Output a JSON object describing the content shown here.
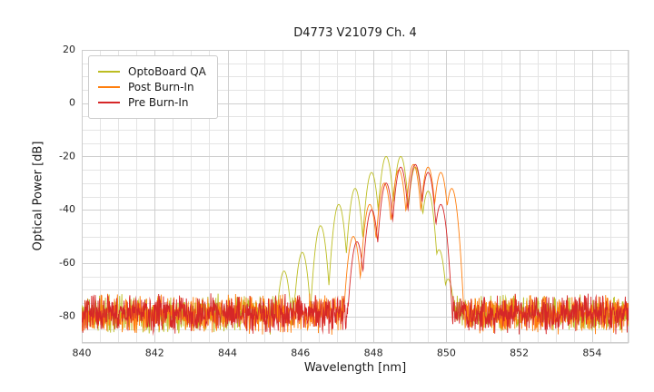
{
  "chart_data": {
    "type": "line",
    "title": "D4773 V21079 Ch. 4",
    "xlabel": "Wavelength [nm]",
    "ylabel": "Optical Power [dB]",
    "xlim": [
      840,
      855
    ],
    "ylim": [
      -90,
      20
    ],
    "xticks": [
      840,
      842,
      844,
      846,
      848,
      850,
      852,
      854
    ],
    "yticks": [
      20,
      0,
      -20,
      -40,
      -60,
      -80
    ],
    "grid": {
      "minor_x_step_nm": 0.5,
      "minor_y_step_db": 5,
      "minor_color": "#e4e4e4",
      "major_color": "#cfcfcf",
      "frame_color": "#cccccc"
    },
    "legend_position": "upper-left",
    "sample_step_nm": 0.01,
    "noise_floor": {
      "min_db": -87,
      "max_db": -71
    },
    "mode_half_spacing_nm": 0.28,
    "mode_drop_db": 33,
    "series": [
      {
        "name": "OptoBoard QA",
        "color": "#bcbd22",
        "seed": 11,
        "modes": [
          [
            845.55,
            -63
          ],
          [
            846.05,
            -56
          ],
          [
            846.55,
            -46
          ],
          [
            847.05,
            -38
          ],
          [
            847.5,
            -32
          ],
          [
            847.95,
            -26
          ],
          [
            848.35,
            -20
          ],
          [
            848.75,
            -20
          ],
          [
            849.15,
            -24
          ],
          [
            849.5,
            -33
          ],
          [
            849.8,
            -55
          ],
          [
            850.05,
            -66
          ]
        ]
      },
      {
        "name": "Post Burn-In",
        "color": "#ff7f0e",
        "seed": 27,
        "modes": [
          [
            847.45,
            -50
          ],
          [
            847.9,
            -38
          ],
          [
            848.3,
            -30
          ],
          [
            848.7,
            -25
          ],
          [
            849.1,
            -23
          ],
          [
            849.5,
            -24
          ],
          [
            849.85,
            -26
          ],
          [
            850.15,
            -32
          ]
        ]
      },
      {
        "name": "Pre Burn-In",
        "color": "#d62728",
        "seed": 43,
        "modes": [
          [
            847.55,
            -52
          ],
          [
            847.95,
            -40
          ],
          [
            848.35,
            -30
          ],
          [
            848.75,
            -24
          ],
          [
            849.15,
            -23
          ],
          [
            849.5,
            -26
          ],
          [
            849.85,
            -38
          ]
        ]
      }
    ],
    "tick_font_px": 11,
    "tick_color": "#262626"
  }
}
